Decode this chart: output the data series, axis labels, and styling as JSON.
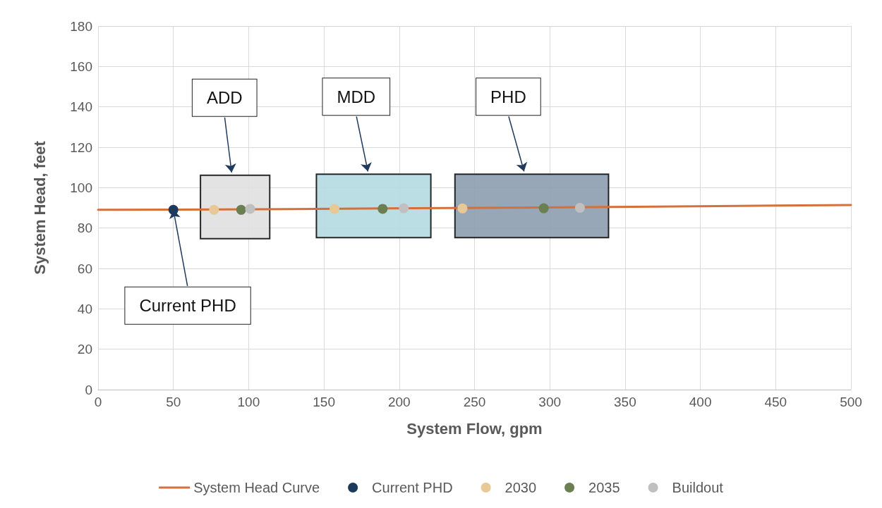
{
  "chart_data": {
    "type": "scatter",
    "xlabel": "System Flow, gpm",
    "ylabel": "System Head, feet",
    "xlim": [
      0,
      500
    ],
    "xticks": [
      0,
      50,
      100,
      150,
      200,
      250,
      300,
      350,
      400,
      450,
      500
    ],
    "ylim": [
      0,
      180
    ],
    "yticks": [
      0,
      20,
      40,
      60,
      80,
      100,
      120,
      140,
      160,
      180
    ],
    "grid": true,
    "legend": "bottom",
    "marker": "circle",
    "series": [
      {
        "name": "System Head Curve",
        "type": "line",
        "color": "#d4703a",
        "x": [
          0,
          130,
          230,
          370,
          450,
          500
        ],
        "values": [
          89,
          89.4,
          89.9,
          90.6,
          91.1,
          91.4
        ],
        "marker": "none"
      },
      {
        "name": "Current PHD",
        "color": "#1b3a5c",
        "x": [
          50
        ],
        "values": [
          89
        ]
      },
      {
        "name": "2030",
        "color": "#e8c894",
        "x": [
          77,
          157,
          242
        ],
        "values": [
          89,
          89.5,
          89.7
        ]
      },
      {
        "name": "2035",
        "color": "#6b7f52",
        "x": [
          95,
          189,
          296
        ],
        "values": [
          89,
          89.5,
          89.8
        ]
      },
      {
        "name": "Buildout",
        "color": "#c0c0c0",
        "x": [
          101,
          203,
          320
        ],
        "values": [
          89.5,
          89.8,
          90
        ]
      }
    ],
    "bands": [
      {
        "axis": "x",
        "from": 68,
        "to": 114,
        "label": "ADD",
        "color": "#e0e0e0"
      },
      {
        "axis": "x",
        "from": 145,
        "to": 221,
        "label": "MDD",
        "color": "#b3dae0"
      },
      {
        "axis": "x",
        "from": 237,
        "to": 339,
        "label": "PHD",
        "color": "#8c9db0"
      }
    ],
    "annotations": [
      {
        "text": "Current PHD",
        "x": 50,
        "y": 89
      }
    ]
  }
}
